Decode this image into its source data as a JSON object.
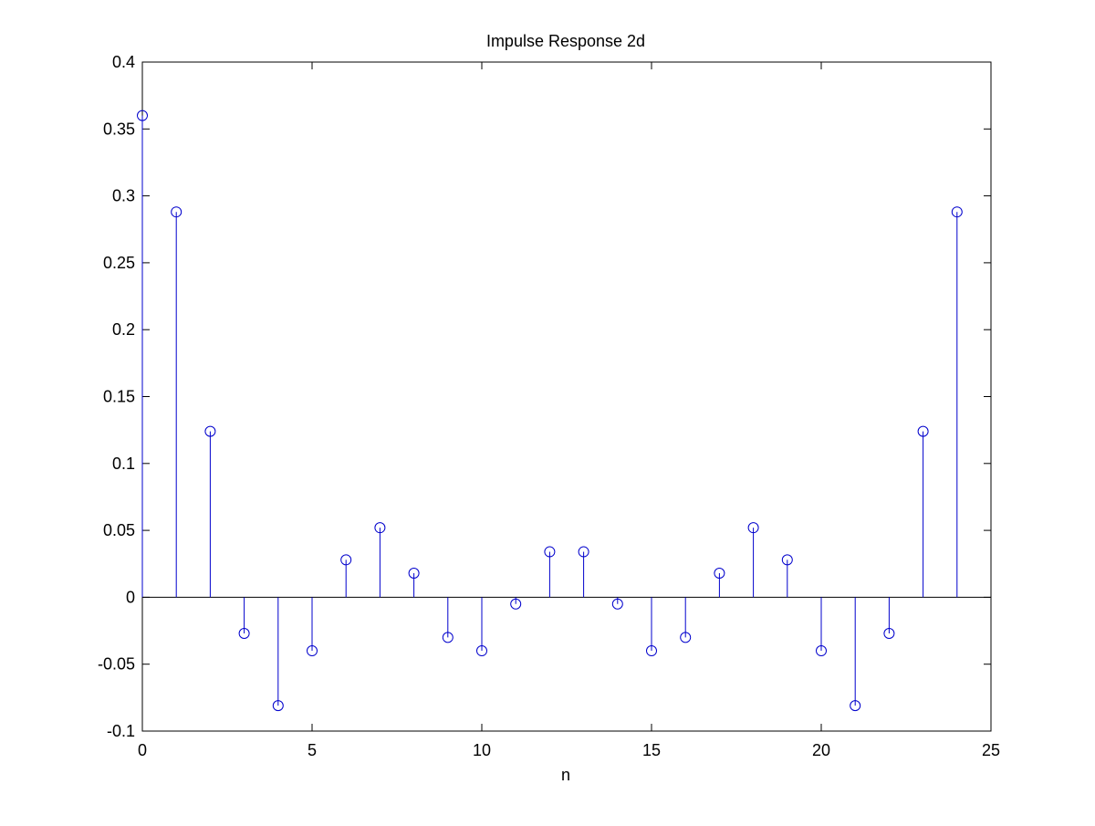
{
  "chart_data": {
    "type": "stem",
    "title": "Impulse Response 2d",
    "xlabel": "n",
    "ylabel": "",
    "xlim": [
      0,
      25
    ],
    "ylim": [
      -0.1,
      0.4
    ],
    "xticks": [
      "0",
      "5",
      "10",
      "15",
      "20",
      "25"
    ],
    "yticks": [
      "-0.1",
      "-0.05",
      "0",
      "0.05",
      "0.1",
      "0.15",
      "0.2",
      "0.25",
      "0.3",
      "0.35",
      "0.4"
    ],
    "grid": false,
    "legend": "none",
    "series": [
      {
        "x": [
          0,
          1,
          2,
          3,
          4,
          5,
          6,
          7,
          8,
          9,
          10,
          11,
          12,
          13,
          14,
          15,
          16,
          17,
          18,
          19,
          20,
          21,
          22,
          23,
          24
        ],
        "values": [
          0.36,
          0.288,
          0.124,
          -0.027,
          -0.081,
          -0.04,
          0.028,
          0.052,
          0.018,
          -0.03,
          -0.04,
          -0.005,
          0.034,
          0.034,
          -0.005,
          -0.04,
          -0.03,
          0.018,
          0.052,
          0.028,
          -0.04,
          -0.081,
          -0.027,
          0.124,
          0.288
        ]
      }
    ],
    "colors": {
      "stem": "#0000cc",
      "axes": "#000000",
      "background": "#ffffff"
    }
  }
}
